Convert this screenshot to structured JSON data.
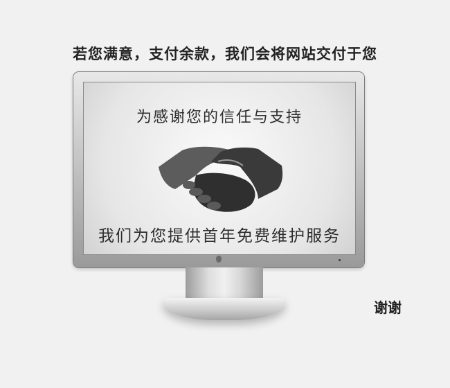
{
  "headline": "若您满意，支付余款，我们会将网站交付于您",
  "screen": {
    "title": "为感谢您的信任与支持",
    "subtitle": "我们为您提供首年免费维护服务"
  },
  "thanks": "谢谢",
  "icons": {
    "main": "handshake-icon",
    "logo": "apple-logo-icon"
  }
}
